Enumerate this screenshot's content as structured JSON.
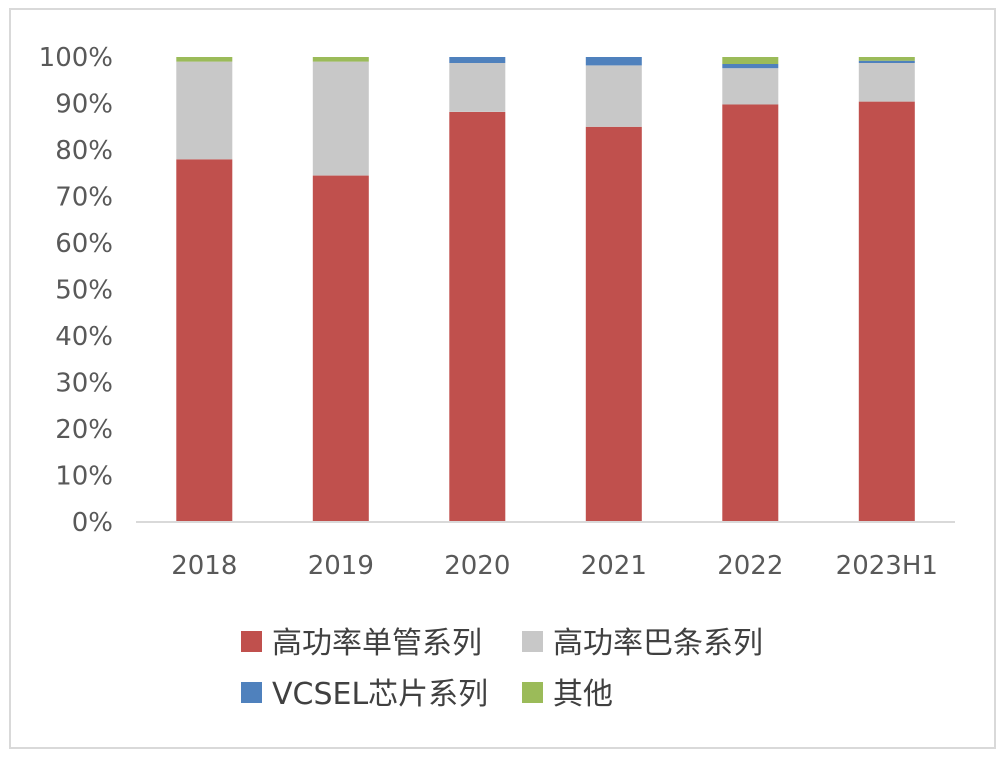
{
  "chart_data": {
    "type": "bar",
    "stacked": true,
    "percent": true,
    "title": "",
    "xlabel": "",
    "ylabel": "",
    "ylim": [
      0,
      100
    ],
    "yticks": [
      0,
      10,
      20,
      30,
      40,
      50,
      60,
      70,
      80,
      90,
      100
    ],
    "ytick_labels": [
      "0%",
      "10%",
      "20%",
      "30%",
      "40%",
      "50%",
      "60%",
      "70%",
      "80%",
      "90%",
      "100%"
    ],
    "categories": [
      "2018",
      "2019",
      "2020",
      "2021",
      "2022",
      "2023H1"
    ],
    "series": [
      {
        "name": "高功率单管系列",
        "color": "#c0504d",
        "values": [
          78.0,
          74.5,
          88.2,
          85.0,
          89.8,
          90.4
        ]
      },
      {
        "name": "高功率巴条系列",
        "color": "#c8c8c8",
        "values": [
          21.0,
          24.5,
          10.5,
          13.2,
          7.8,
          8.3
        ]
      },
      {
        "name": "VCSEL芯片系列",
        "color": "#4f81bd",
        "values": [
          0.0,
          0.0,
          1.3,
          1.8,
          0.9,
          0.5
        ]
      },
      {
        "name": "其他",
        "color": "#9bbb59",
        "values": [
          1.0,
          1.0,
          0.0,
          0.0,
          1.5,
          0.8
        ]
      }
    ],
    "legend_position": "bottom",
    "grid": false
  }
}
